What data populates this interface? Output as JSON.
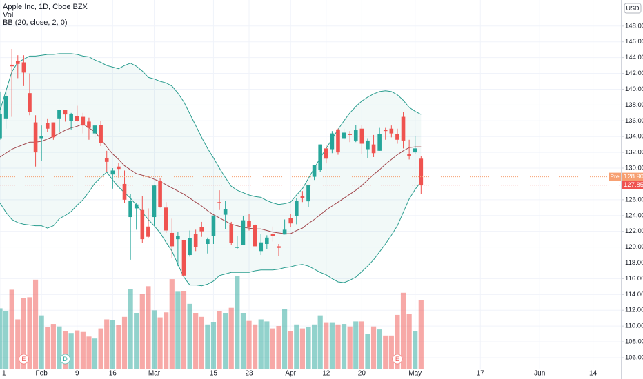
{
  "chart_data": {
    "type": "candlestick",
    "title": "Apple Inc, 1D, Cboe BZX",
    "indicators": [
      "Vol",
      "BB (20, close, 2, 0)"
    ],
    "currency": "USD",
    "up_color": "#26a69a",
    "down_color": "#ef5350",
    "bb_color": "#2a9d8f",
    "bb_basis_color": "#a0444a",
    "x": [
      0,
      1,
      2,
      3,
      4,
      5,
      6,
      7,
      8,
      9,
      10,
      11,
      12,
      13,
      14,
      15,
      16,
      17,
      18,
      19,
      20,
      21,
      22,
      23,
      24,
      25,
      26,
      27,
      28,
      29,
      30,
      31,
      32,
      33,
      34,
      35,
      36,
      37,
      38,
      39,
      40,
      41,
      42,
      43,
      44,
      45,
      46,
      47,
      48,
      49,
      50,
      51,
      52,
      53,
      54,
      55,
      56,
      57,
      58,
      59,
      60,
      61,
      62,
      63,
      64,
      65,
      66,
      67,
      68,
      69,
      70,
      71
    ],
    "open": [
      133.8,
      136.3,
      143.1,
      143.6,
      143.4,
      139.5,
      135.8,
      133.8,
      135.7,
      135.8,
      136.3,
      137.4,
      136.0,
      136.6,
      136.5,
      135.9,
      134.4,
      135.5,
      131.3,
      129.2,
      130.2,
      128.0,
      123.8,
      124.9,
      124.7,
      122.6,
      123.8,
      128.4,
      125.0,
      121.8,
      121.0,
      120.9,
      119.0,
      121.7,
      122.5,
      120.4,
      121.4,
      125.7,
      124.1,
      122.9,
      119.9,
      120.3,
      123.3,
      122.8,
      119.5,
      120.4,
      121.7,
      120.1,
      121.6,
      123.7,
      123.9,
      126.5,
      125.8,
      128.9,
      129.8,
      132.5,
      132.4,
      134.9,
      133.8,
      134.3,
      133.5,
      135.0,
      132.4,
      133.0,
      132.2,
      134.8,
      135.0,
      134.3,
      136.5,
      131.8,
      132.0,
      131.2
    ],
    "high": [
      139.7,
      139.9,
      145.1,
      144.3,
      144.3,
      142.0,
      136.7,
      135.4,
      136.3,
      135.8,
      137.4,
      137.4,
      137.0,
      137.9,
      137.0,
      136.4,
      135.5,
      136.0,
      132.2,
      130.0,
      130.7,
      129.7,
      126.7,
      125.6,
      126.5,
      124.9,
      127.9,
      128.7,
      125.7,
      123.6,
      121.9,
      121.0,
      122.1,
      122.2,
      123.2,
      121.2,
      124.0,
      127.2,
      125.9,
      123.2,
      121.4,
      123.9,
      124.2,
      122.9,
      121.7,
      121.5,
      122.6,
      120.4,
      123.5,
      124.2,
      126.2,
      127.1,
      127.9,
      130.4,
      133.0,
      132.9,
      134.7,
      135.0,
      135.0,
      134.7,
      135.5,
      135.5,
      133.8,
      134.2,
      135.1,
      135.1,
      135.4,
      135.0,
      137.1,
      133.6,
      134.1,
      131.5
    ],
    "low": [
      133.6,
      135.0,
      136.5,
      141.4,
      140.4,
      136.7,
      130.2,
      130.9,
      134.6,
      133.6,
      134.6,
      135.9,
      134.9,
      135.9,
      134.4,
      133.6,
      133.7,
      132.8,
      129.5,
      127.4,
      128.8,
      125.6,
      118.4,
      122.2,
      120.5,
      121.2,
      122.8,
      125.0,
      121.8,
      118.6,
      117.6,
      116.2,
      118.8,
      119.5,
      121.3,
      119.2,
      120.4,
      124.7,
      122.3,
      120.3,
      119.7,
      120.3,
      122.1,
      120.1,
      119.0,
      119.7,
      120.7,
      118.9,
      121.6,
      122.5,
      122.9,
      125.7,
      125.1,
      128.5,
      129.5,
      130.6,
      131.9,
      131.7,
      133.6,
      133.3,
      133.3,
      131.8,
      131.3,
      131.4,
      132.2,
      133.6,
      133.9,
      133.1,
      132.5,
      131.1,
      131.8,
      126.7
    ],
    "close": [
      136.9,
      139.1,
      142.9,
      143.2,
      142.1,
      137.1,
      132.0,
      134.1,
      135.0,
      133.9,
      137.4,
      136.8,
      136.9,
      136.0,
      135.4,
      135.1,
      135.4,
      133.2,
      130.8,
      129.7,
      129.9,
      126.0,
      125.9,
      125.4,
      121.0,
      121.3,
      127.8,
      125.1,
      122.1,
      120.1,
      121.4,
      116.4,
      121.1,
      120.0,
      122.0,
      121.0,
      124.0,
      125.6,
      124.8,
      120.5,
      120.0,
      123.4,
      122.5,
      120.1,
      120.6,
      121.2,
      121.4,
      119.9,
      122.2,
      123.0,
      125.9,
      126.2,
      127.9,
      130.4,
      133.0,
      131.2,
      134.4,
      132.0,
      134.5,
      134.2,
      134.8,
      133.1,
      133.5,
      131.9,
      134.3,
      134.7,
      134.4,
      133.6,
      133.5,
      131.5,
      132.5,
      127.85
    ],
    "volume": [
      120,
      114,
      157,
      98,
      140,
      142,
      177,
      106,
      83,
      89,
      84,
      75,
      71,
      76,
      73,
      64,
      60,
      80,
      98,
      96,
      87,
      103,
      158,
      111,
      148,
      164,
      116,
      102,
      112,
      178,
      153,
      154,
      129,
      111,
      103,
      88,
      92,
      115,
      111,
      121,
      185,
      111,
      95,
      88,
      98,
      94,
      80,
      85,
      118,
      75,
      88,
      80,
      83,
      88,
      106,
      91,
      91,
      88,
      89,
      84,
      94,
      94,
      69,
      84,
      78,
      66,
      66,
      107,
      151,
      109,
      75,
      137
    ],
    "bb_upper": [
      137.3,
      139.8,
      142.2,
      143.4,
      143.8,
      144.2,
      144.2,
      144.3,
      144.4,
      144.4,
      144.5,
      144.5,
      144.5,
      144.4,
      144.2,
      144.1,
      143.7,
      143.4,
      143.0,
      142.8,
      142.6,
      143.0,
      143.3,
      142.9,
      142.3,
      141.5,
      141.3,
      141.0,
      140.8,
      140.4,
      139.5,
      138.4,
      136.9,
      135.4,
      133.9,
      132.5,
      131.3,
      130.0,
      128.8,
      127.7,
      127.2,
      126.9,
      126.6,
      126.4,
      126.3,
      125.9,
      125.6,
      125.4,
      125.5,
      125.7,
      126.6,
      127.4,
      128.7,
      130.0,
      131.3,
      132.5,
      133.7,
      134.9,
      136.0,
      137.0,
      137.8,
      138.5,
      139.0,
      139.4,
      139.7,
      139.8,
      139.7,
      139.3,
      138.6,
      137.7,
      137.2,
      136.8
    ],
    "bb_basis": [
      131.4,
      131.9,
      132.4,
      132.7,
      133.0,
      133.3,
      133.3,
      133.4,
      133.7,
      134.0,
      134.4,
      134.8,
      135.1,
      135.3,
      135.6,
      135.1,
      134.6,
      133.7,
      132.7,
      131.8,
      131.1,
      130.3,
      129.8,
      129.3,
      129.1,
      128.9,
      128.6,
      128.3,
      127.9,
      127.5,
      127.1,
      126.7,
      126.2,
      125.7,
      125.2,
      124.6,
      124.1,
      123.7,
      123.3,
      122.9,
      122.7,
      122.5,
      122.4,
      122.3,
      122.3,
      122.1,
      121.9,
      121.8,
      121.7,
      121.7,
      122.1,
      122.4,
      123.0,
      123.5,
      124.1,
      124.7,
      125.2,
      125.7,
      126.2,
      126.7,
      127.2,
      127.8,
      128.5,
      129.2,
      129.8,
      130.5,
      131.1,
      131.7,
      132.2,
      132.6,
      132.7,
      132.7
    ],
    "bb_lower": [
      125.6,
      124.4,
      123.5,
      123.1,
      122.9,
      122.8,
      122.7,
      122.7,
      122.4,
      122.7,
      123.6,
      124.0,
      124.5,
      125.3,
      126.0,
      127.0,
      128.1,
      128.8,
      129.5,
      128.5,
      127.6,
      126.9,
      126.2,
      125.3,
      124.4,
      123.5,
      122.7,
      121.8,
      120.6,
      119.5,
      117.8,
      116.2,
      115.2,
      115.2,
      115.1,
      115.3,
      115.7,
      116.4,
      116.6,
      116.8,
      116.8,
      116.8,
      116.8,
      117.0,
      117.1,
      117.1,
      117.1,
      117.2,
      117.4,
      117.5,
      117.7,
      117.8,
      117.6,
      117.2,
      116.8,
      116.5,
      116.0,
      115.6,
      115.5,
      115.8,
      116.2,
      116.9,
      117.6,
      118.4,
      119.4,
      120.4,
      121.5,
      122.7,
      124.4,
      126.1,
      127.3,
      128.3
    ],
    "xlim": [
      0,
      104.7
    ],
    "xticks": [
      {
        "value": 0,
        "label": "1"
      },
      {
        "value": 7,
        "label": "Feb"
      },
      {
        "value": 13,
        "label": "9"
      },
      {
        "value": 19,
        "label": "16"
      },
      {
        "value": 26,
        "label": "Mar"
      },
      {
        "value": 36,
        "label": "15"
      },
      {
        "value": 42,
        "label": "23"
      },
      {
        "value": 49,
        "label": "Apr"
      },
      {
        "value": 55,
        "label": "12"
      },
      {
        "value": 61,
        "label": "20"
      },
      {
        "value": 70,
        "label": "May"
      },
      {
        "value": 81,
        "label": "17"
      },
      {
        "value": 91,
        "label": "Jun"
      },
      {
        "value": 100,
        "label": "14"
      }
    ],
    "ylim": [
      104.6,
      151.3
    ],
    "yticks": [
      {
        "value": 106,
        "label": "106.00"
      },
      {
        "value": 108,
        "label": "108.00"
      },
      {
        "value": 110,
        "label": "110.00"
      },
      {
        "value": 112,
        "label": "112.00"
      },
      {
        "value": 114,
        "label": "114.00"
      },
      {
        "value": 116,
        "label": "116.00"
      },
      {
        "value": 118,
        "label": "118.00"
      },
      {
        "value": 120,
        "label": "120.00"
      },
      {
        "value": 122,
        "label": "122.00"
      },
      {
        "value": 124,
        "label": "124.00"
      },
      {
        "value": 126,
        "label": "126.00"
      },
      {
        "value": 130,
        "label": "130.00"
      },
      {
        "value": 132,
        "label": "132.00"
      },
      {
        "value": 134,
        "label": "134.00"
      },
      {
        "value": 136,
        "label": "136.00"
      },
      {
        "value": 138,
        "label": "138.00"
      },
      {
        "value": 140,
        "label": "140.00"
      },
      {
        "value": 142,
        "label": "142.00"
      },
      {
        "value": 144,
        "label": "144.00"
      },
      {
        "value": 146,
        "label": "146.00"
      },
      {
        "value": 148,
        "label": "148.00"
      }
    ],
    "grid": true,
    "price_lines": [
      {
        "value": 128.9,
        "label": "128.90",
        "tag": "Pre",
        "color": "#f7a072"
      },
      {
        "value": 127.85,
        "label": "127.85",
        "color": "#ef5350"
      }
    ],
    "events": [
      {
        "x": 4,
        "label": "E"
      },
      {
        "x": 11,
        "label": "D"
      },
      {
        "x": 67,
        "label": "E"
      }
    ]
  }
}
